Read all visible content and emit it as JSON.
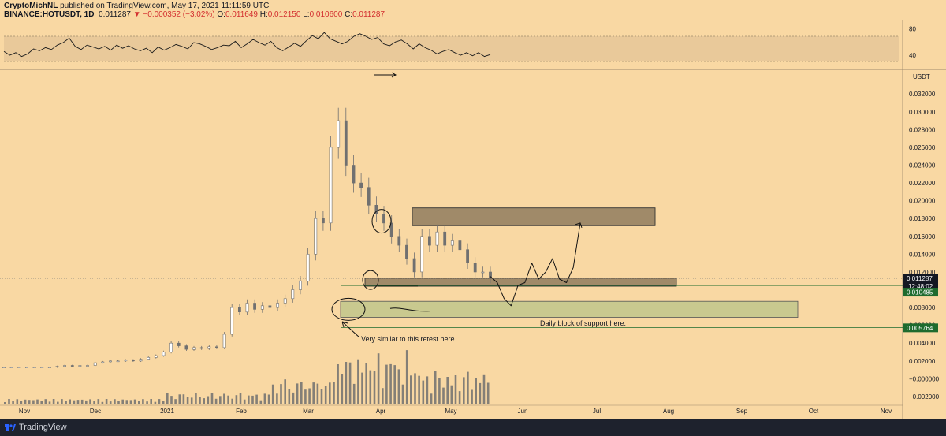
{
  "header": {
    "publisher": "CryptoMichNL",
    "published_text": "published on TradingView.com, May 17, 2021 11:11:59 UTC",
    "symbol": "BINANCE:HOTUSDT, 1D",
    "last": "0.011287",
    "change": "▼ −0.000352 (−3.02%)",
    "o_label": "O:",
    "o_val": "0.011649",
    "h_label": "H:",
    "h_val": "0.012150",
    "l_label": "L:",
    "l_val": "0.010600",
    "c_label": "C:",
    "c_val": "0.011287"
  },
  "footer": {
    "brand": "TradingView",
    "logo_icon": "tradingview-logo-icon"
  },
  "colors": {
    "background": "#f9d8a3",
    "candle": "#707070",
    "support_zone": "#c9c98f",
    "resistance_zone": "#a08a69",
    "green_tag": "#1e6b2e",
    "dark_tag": "#131722"
  },
  "chart_data": [
    {
      "type": "line",
      "name": "RSI",
      "yticks": [
        "80",
        "40"
      ],
      "ylim": [
        20,
        90
      ],
      "band": [
        30,
        70
      ],
      "values": [
        46,
        40,
        44,
        38,
        42,
        50,
        47,
        52,
        49,
        56,
        60,
        67,
        54,
        49,
        56,
        53,
        50,
        54,
        48,
        56,
        51,
        55,
        50,
        47,
        51,
        44,
        53,
        48,
        52,
        57,
        54,
        50,
        60,
        58,
        54,
        49,
        52,
        56,
        55,
        62,
        52,
        58,
        65,
        60,
        56,
        62,
        52,
        47,
        53,
        59,
        54,
        63,
        71,
        66,
        76,
        66,
        62,
        58,
        62,
        70,
        74,
        70,
        65,
        68,
        58,
        55,
        61,
        64,
        58,
        50,
        58,
        52,
        48,
        42,
        46,
        49,
        44,
        40,
        44,
        39,
        44,
        38,
        41
      ]
    },
    {
      "type": "candlestick",
      "axis_unit": "USDT",
      "yticks": [
        "0.032000",
        "0.030000",
        "0.028000",
        "0.026000",
        "0.024000",
        "0.022000",
        "0.020000",
        "0.018000",
        "0.016000",
        "0.014000",
        "0.012000",
        "0.008000",
        "0.006000",
        "0.004000",
        "0.002000",
        "−0.000000",
        "−0.002000"
      ],
      "ylim": [
        -0.0028,
        0.0345
      ],
      "xticks": [
        "Nov",
        "Dec",
        "2021",
        "Feb",
        "Mar",
        "Apr",
        "May",
        "Jun",
        "Jul",
        "Aug",
        "Sep",
        "Oct",
        "Nov"
      ],
      "price_tags": [
        {
          "label": "0.011287",
          "sub": "12:48:02",
          "style": "dark"
        },
        {
          "label": "0.010485",
          "style": "green"
        },
        {
          "label": "0.005764",
          "style": "green"
        }
      ],
      "closes_path": [
        0.0013,
        0.0013,
        0.0013,
        0.0013,
        0.0013,
        0.0013,
        0.0013,
        0.0014,
        0.0015,
        0.0014,
        0.0015,
        0.0015,
        0.0018,
        0.0019,
        0.002,
        0.002,
        0.0021,
        0.002,
        0.0022,
        0.0024,
        0.0026,
        0.003,
        0.004,
        0.0037,
        0.0033,
        0.0035,
        0.0034,
        0.0036,
        0.0035,
        0.005,
        0.008,
        0.0075,
        0.0085,
        0.0078,
        0.0082,
        0.008,
        0.0085,
        0.009,
        0.01,
        0.011,
        0.014,
        0.018,
        0.0175,
        0.026,
        0.029,
        0.024,
        0.022,
        0.0215,
        0.0195,
        0.0185,
        0.0175,
        0.016,
        0.015,
        0.0135,
        0.012,
        0.016,
        0.015,
        0.0165,
        0.015,
        0.0155,
        0.0145,
        0.013,
        0.012,
        0.012,
        0.0113
      ],
      "projection_path": [
        0.0115,
        0.0108,
        0.009,
        0.0082,
        0.0105,
        0.0108,
        0.013,
        0.0112,
        0.012,
        0.0135,
        0.0112,
        0.0108,
        0.0125,
        0.0175
      ],
      "annotations": [
        {
          "text": "Daily block of support here."
        },
        {
          "text": "Very similar to this retest here."
        }
      ]
    }
  ]
}
